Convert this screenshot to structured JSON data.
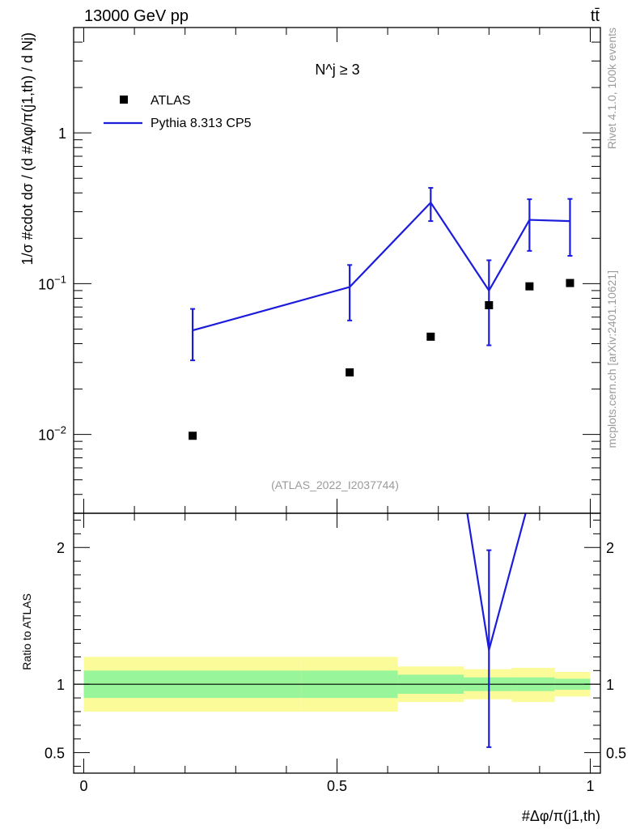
{
  "header": {
    "left": "13000 GeV pp",
    "right": "tt̄"
  },
  "side_texts": {
    "rivet": "Rivet 4.1.0,  100k events",
    "mcplots": "mcplots.cern.ch [arXiv:2401.10621]"
  },
  "colors": {
    "atlas": "#000000",
    "pythia": "#1c1cdc",
    "band_inner": "#99f599",
    "band_outer": "#fbfb99"
  },
  "chart_data": [
    {
      "type": "scatter",
      "panel": "main",
      "annotation": "N^j ≥ 3",
      "watermark": "(ATLAS_2022_I2037744)",
      "ylabel": "1/σ #cdot dσ / (d #Δφ/π(j1,th) / d Nj)",
      "yscale": "log",
      "ylim": [
        0.003,
        5
      ],
      "xlim": [
        -0.02,
        1.02
      ],
      "y_ticks": [
        {
          "value": 0.01,
          "base": "10",
          "exp": "−2"
        },
        {
          "value": 0.1,
          "base": "10",
          "exp": "−1"
        },
        {
          "value": 1,
          "base": "1",
          "exp": ""
        }
      ],
      "legend": [
        {
          "name": "ATLAS",
          "marker": "square"
        },
        {
          "name": "Pythia 8.313 CP5",
          "marker": "line"
        }
      ],
      "series": [
        {
          "name": "ATLAS",
          "style": "markers",
          "x": [
            0.215,
            0.525,
            0.685,
            0.8,
            0.88,
            0.96
          ],
          "y": [
            0.0098,
            0.0258,
            0.0445,
            0.072,
            0.096,
            0.101
          ]
        },
        {
          "name": "Pythia 8.313 CP5",
          "style": "line",
          "x": [
            0.215,
            0.525,
            0.685,
            0.8,
            0.88,
            0.96
          ],
          "y": [
            0.049,
            0.095,
            0.345,
            0.09,
            0.265,
            0.26
          ],
          "err_low": [
            0.031,
            0.057,
            0.26,
            0.039,
            0.165,
            0.153
          ],
          "err_high": [
            0.068,
            0.133,
            0.432,
            0.143,
            0.363,
            0.365
          ]
        }
      ]
    },
    {
      "type": "line",
      "panel": "ratio",
      "ylabel": "Ratio to ATLAS",
      "xlabel": "#Δφ/π(j1,th)",
      "ylim": [
        0.35,
        2.25
      ],
      "xlim": [
        -0.02,
        1.02
      ],
      "x_ticks": [
        {
          "value": 0,
          "label": "0"
        },
        {
          "value": 0.5,
          "label": "0.5"
        },
        {
          "value": 1,
          "label": "1"
        }
      ],
      "y_ticks": [
        {
          "value": 0.5,
          "label": "0.5"
        },
        {
          "value": 1,
          "label": "1"
        },
        {
          "value": 2,
          "label": "2"
        }
      ],
      "bands": [
        {
          "x0": 0.0,
          "x1": 0.43,
          "inner": [
            0.9,
            1.1
          ],
          "outer": [
            0.8,
            1.2
          ]
        },
        {
          "x0": 0.43,
          "x1": 0.62,
          "inner": [
            0.9,
            1.1
          ],
          "outer": [
            0.8,
            1.2
          ]
        },
        {
          "x0": 0.62,
          "x1": 0.75,
          "inner": [
            0.93,
            1.07
          ],
          "outer": [
            0.87,
            1.13
          ]
        },
        {
          "x0": 0.75,
          "x1": 0.845,
          "inner": [
            0.95,
            1.05
          ],
          "outer": [
            0.89,
            1.11
          ]
        },
        {
          "x0": 0.845,
          "x1": 0.93,
          "inner": [
            0.95,
            1.05
          ],
          "outer": [
            0.87,
            1.12
          ]
        },
        {
          "x0": 0.93,
          "x1": 1.0,
          "inner": [
            0.96,
            1.04
          ],
          "outer": [
            0.91,
            1.09
          ]
        }
      ],
      "series": [
        {
          "name": "Pythia 8.313 CP5 / ATLAS",
          "x": [
            0.755,
            0.8,
            0.876
          ],
          "y": [
            2.3,
            1.25,
            2.3
          ],
          "err_x": [
            0.8
          ],
          "err_center": [
            1.25
          ],
          "err_low": [
            0.54
          ],
          "err_high": [
            1.98
          ]
        }
      ]
    }
  ]
}
